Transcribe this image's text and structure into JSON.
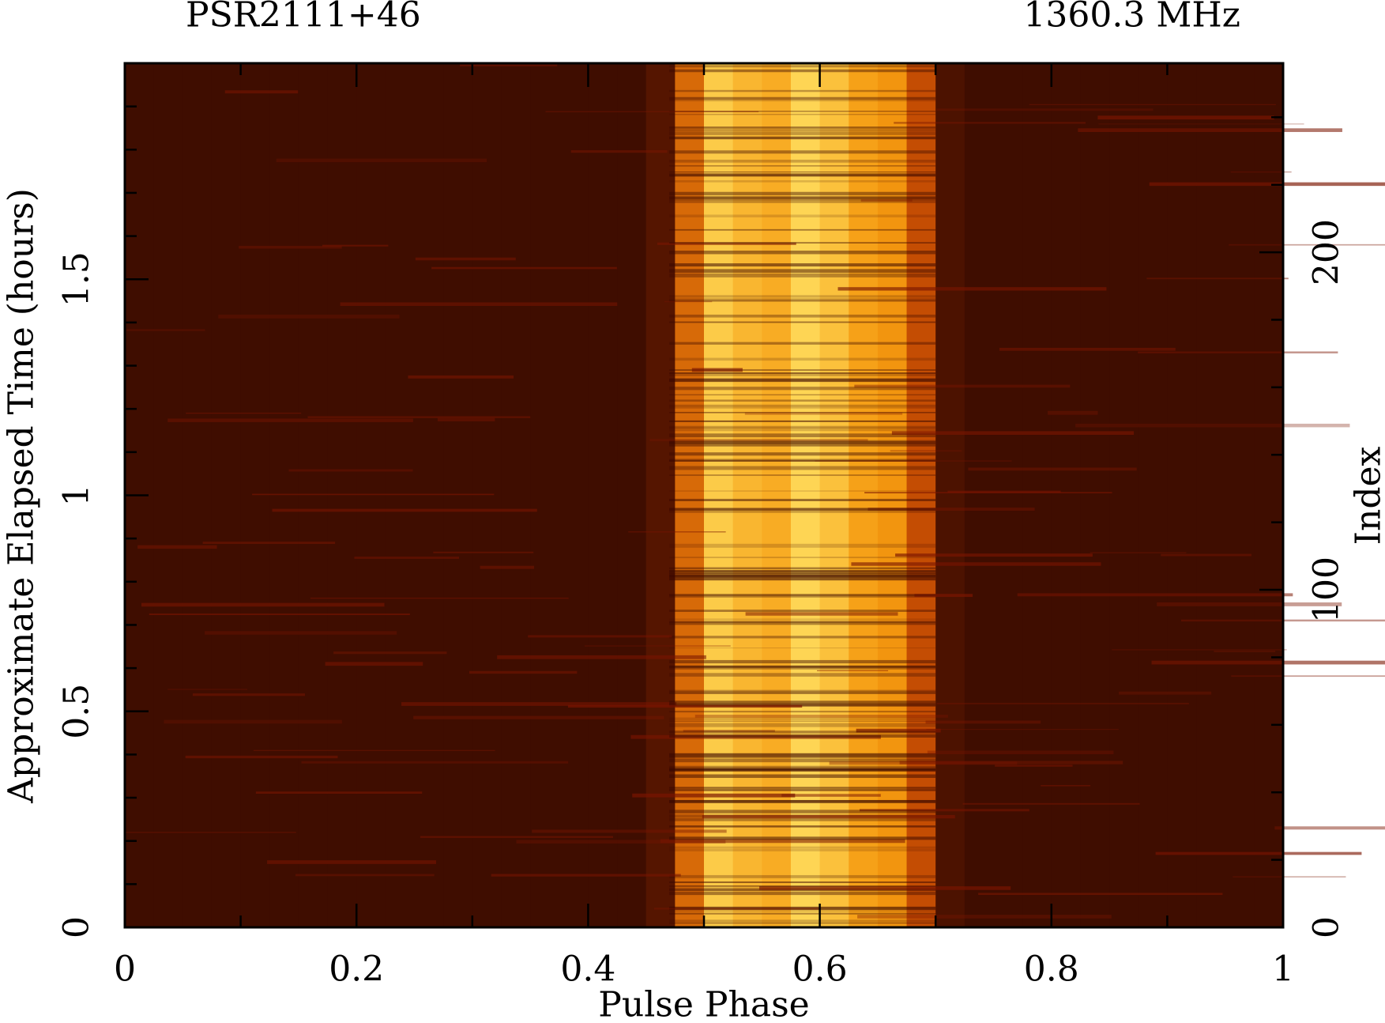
{
  "chart_data": {
    "type": "heatmap",
    "title": "PSR2111+46",
    "subtitle": "1360.3 MHz",
    "x_label": "Pulse Phase",
    "y_label": "Approximate Elapsed Time (hours)",
    "y2_label": "Index",
    "bins": [
      0,
      0.025,
      0.05,
      0.075,
      0.1,
      0.125,
      0.15,
      0.175,
      0.2,
      0.225,
      0.25,
      0.275,
      0.3,
      0.325,
      0.35,
      0.375,
      0.4,
      0.425,
      0.45,
      0.475,
      0.5,
      0.525,
      0.55,
      0.575,
      0.6,
      0.625,
      0.65,
      0.675,
      0.7,
      0.725,
      0.75,
      0.775,
      0.8,
      0.825,
      0.85,
      0.875,
      0.9,
      0.925,
      0.95,
      0.975,
      1
    ],
    "intensity": [
      0.05,
      0.05,
      0.05,
      0.05,
      0.05,
      0.05,
      0.05,
      0.05,
      0.05,
      0.05,
      0.05,
      0.05,
      0.05,
      0.05,
      0.05,
      0.05,
      0.05,
      0.05,
      0.1,
      0.5,
      0.9,
      0.8,
      0.75,
      0.95,
      0.85,
      0.7,
      0.65,
      0.4,
      0.08,
      0.05,
      0.05,
      0.05,
      0.05,
      0.05,
      0.05,
      0.05,
      0.05,
      0.05,
      0.05,
      0.05
    ],
    "colors": [
      "#2a0500",
      "#b83a00",
      "#f59a10",
      "#ffe060"
    ],
    "xlim": [
      0,
      1
    ],
    "xticks": [
      0,
      0.2,
      0.4,
      0.6,
      0.8,
      1
    ],
    "xticks_minor": [
      0.1,
      0.3,
      0.5,
      0.7,
      0.9
    ],
    "ylim": [
      0,
      2
    ],
    "yticks": [
      0,
      0.5,
      1,
      1.5
    ],
    "yticks_minor": [
      0.1,
      0.2,
      0.3,
      0.4,
      0.6,
      0.7,
      0.8,
      0.9,
      1.1,
      1.2,
      1.3,
      1.4,
      1.6,
      1.7,
      1.8,
      1.9
    ],
    "y2lim": [
      0,
      256
    ],
    "y2ticks": [
      0,
      100,
      200
    ],
    "y2ticks_minor": [
      20,
      40,
      60,
      80,
      120,
      140,
      160,
      180,
      220,
      240
    ]
  }
}
